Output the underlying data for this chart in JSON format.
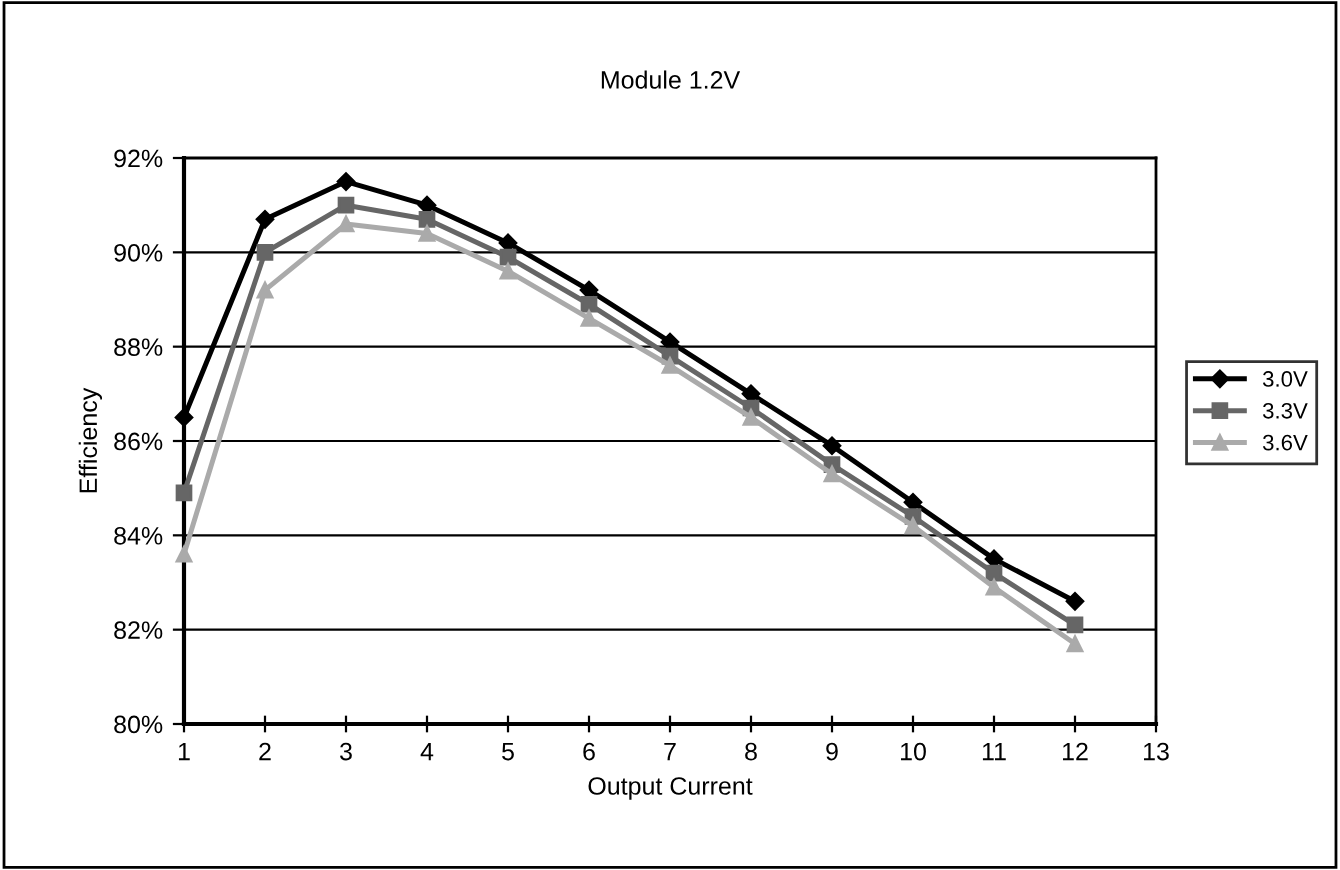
{
  "chart_data": {
    "type": "line",
    "title": "Module 1.2V",
    "xlabel": "Output Current",
    "ylabel": "Efficiency",
    "x": [
      1,
      2,
      3,
      4,
      5,
      6,
      7,
      8,
      9,
      10,
      11,
      12
    ],
    "series": [
      {
        "name": "3.0V",
        "color": "#000000",
        "marker": "diamond",
        "values": [
          86.5,
          90.7,
          91.5,
          91.0,
          90.2,
          89.2,
          88.1,
          87.0,
          85.9,
          84.7,
          83.5,
          82.6
        ]
      },
      {
        "name": "3.3V",
        "color": "#666666",
        "marker": "square",
        "values": [
          84.9,
          90.0,
          91.0,
          90.7,
          89.9,
          88.9,
          87.8,
          86.7,
          85.5,
          84.4,
          83.2,
          82.1
        ]
      },
      {
        "name": "3.6V",
        "color": "#aaaaaa",
        "marker": "triangle",
        "values": [
          83.6,
          89.2,
          90.6,
          90.4,
          89.6,
          88.6,
          87.6,
          86.5,
          85.3,
          84.2,
          82.9,
          81.7
        ]
      }
    ],
    "xlim": [
      1,
      13
    ],
    "xticks": [
      1,
      2,
      3,
      4,
      5,
      6,
      7,
      8,
      9,
      10,
      11,
      12,
      13
    ],
    "ylim": [
      80,
      92
    ],
    "yticks": [
      {
        "value": 80,
        "label": "80%"
      },
      {
        "value": 82,
        "label": "82%"
      },
      {
        "value": 84,
        "label": "84%"
      },
      {
        "value": 86,
        "label": "86%"
      },
      {
        "value": 88,
        "label": "88%"
      },
      {
        "value": 90,
        "label": "90%"
      },
      {
        "value": 92,
        "label": "92%"
      }
    ],
    "grid": "y",
    "legend": "right",
    "line_style": "solid"
  }
}
